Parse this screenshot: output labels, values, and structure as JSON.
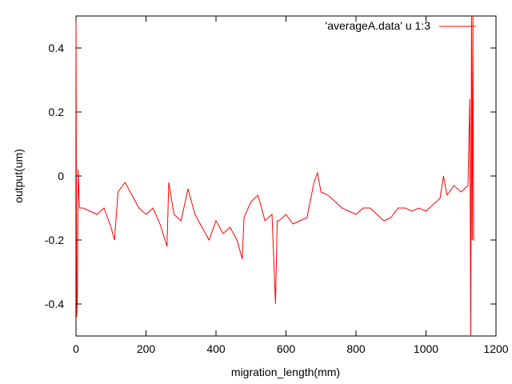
{
  "chart_data": {
    "type": "line",
    "xlabel": "migration_length(mm)",
    "ylabel": "output(um)",
    "xlim": [
      0,
      1200
    ],
    "ylim": [
      -0.5,
      0.5
    ],
    "x_ticks": [
      0,
      200,
      400,
      600,
      800,
      1000,
      1200
    ],
    "y_ticks": [
      -0.4,
      -0.2,
      0,
      0.2,
      0.4
    ],
    "y_tick_labels": [
      "-0.4",
      "-0.2",
      "0",
      "0.2",
      "0.4"
    ],
    "grid": false,
    "legend_position": "top-right",
    "series": [
      {
        "name": "'averageA.data' u 1:3",
        "color": "#ff0000",
        "x": [
          0,
          2,
          4,
          6,
          10,
          20,
          40,
          60,
          80,
          100,
          110,
          120,
          140,
          160,
          180,
          200,
          220,
          240,
          260,
          265,
          280,
          300,
          320,
          340,
          360,
          380,
          400,
          420,
          440,
          460,
          475,
          480,
          500,
          520,
          540,
          560,
          570,
          575,
          580,
          600,
          620,
          640,
          660,
          680,
          690,
          700,
          720,
          740,
          760,
          780,
          800,
          820,
          840,
          860,
          880,
          900,
          920,
          940,
          960,
          980,
          1000,
          1020,
          1040,
          1050,
          1060,
          1080,
          1100,
          1110,
          1120,
          1125,
          1128,
          1130,
          1132,
          1134,
          1136,
          1140
        ],
        "y": [
          0.5,
          -0.44,
          -0.38,
          0.02,
          -0.1,
          -0.1,
          -0.11,
          -0.12,
          -0.1,
          -0.16,
          -0.2,
          -0.05,
          -0.02,
          -0.06,
          -0.1,
          -0.12,
          -0.1,
          -0.15,
          -0.22,
          -0.02,
          -0.12,
          -0.14,
          -0.04,
          -0.12,
          -0.16,
          -0.2,
          -0.14,
          -0.18,
          -0.16,
          -0.2,
          -0.26,
          -0.13,
          -0.08,
          -0.06,
          -0.14,
          -0.12,
          -0.4,
          -0.14,
          -0.14,
          -0.12,
          -0.15,
          -0.14,
          -0.13,
          -0.02,
          0.01,
          -0.05,
          -0.06,
          -0.08,
          -0.1,
          -0.11,
          -0.12,
          -0.1,
          -0.1,
          -0.12,
          -0.14,
          -0.13,
          -0.1,
          -0.1,
          -0.11,
          -0.1,
          -0.11,
          -0.09,
          -0.07,
          0.0,
          -0.06,
          -0.03,
          -0.05,
          -0.04,
          -0.03,
          0.24,
          -0.5,
          0.5,
          -0.2,
          0.5,
          -0.2,
          -0.2
        ]
      }
    ]
  }
}
